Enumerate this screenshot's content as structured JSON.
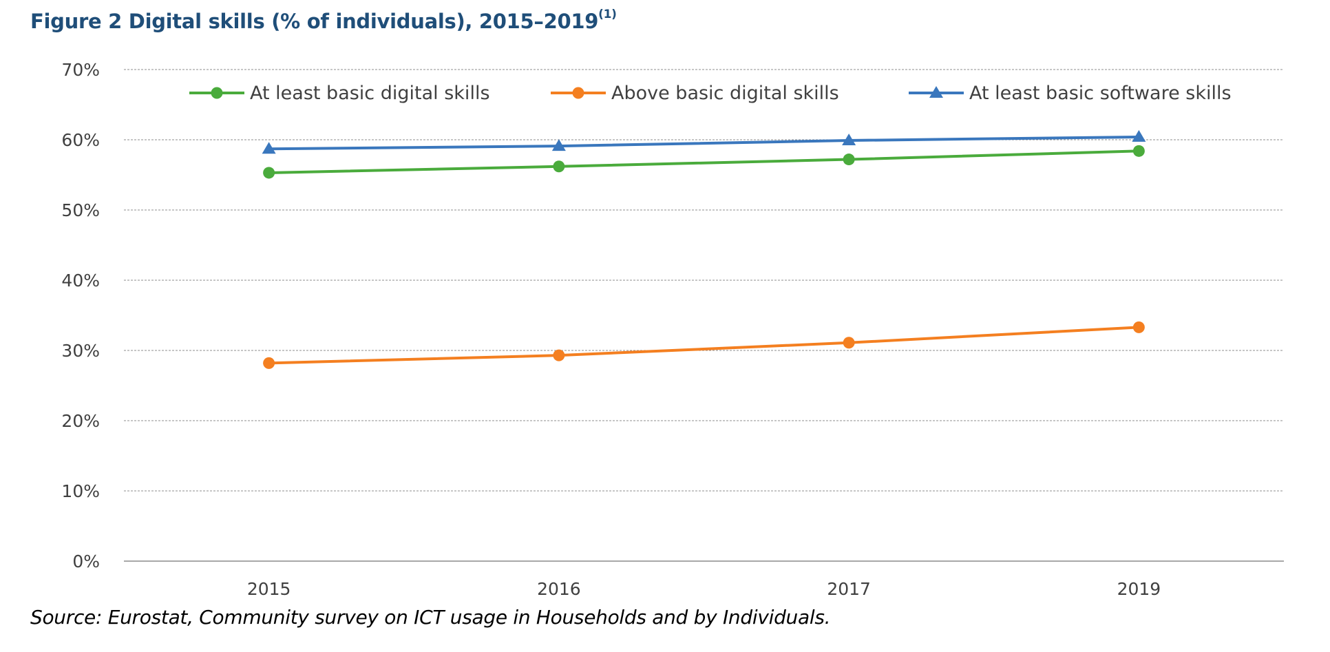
{
  "chart_data": {
    "type": "line",
    "title": "Figure 2 Digital skills (% of individuals), 2015–2019",
    "title_note": "(1)",
    "categories": [
      "2015",
      "2016",
      "2017",
      "2019"
    ],
    "series": [
      {
        "name": "At least basic digital skills",
        "values": [
          55.3,
          56.2,
          57.2,
          58.4
        ],
        "color": "#4aab3c",
        "marker": "circle"
      },
      {
        "name": "Above basic digital skills",
        "values": [
          28.2,
          29.3,
          31.1,
          33.3
        ],
        "color": "#f47f20",
        "marker": "circle"
      },
      {
        "name": "At least basic software skills",
        "values": [
          58.7,
          59.1,
          59.9,
          60.4
        ],
        "color": "#3a77bd",
        "marker": "triangle"
      }
    ],
    "ylim": [
      0,
      70
    ],
    "yticks": [
      "0%",
      "10%",
      "20%",
      "30%",
      "40%",
      "50%",
      "60%",
      "70%"
    ],
    "grid": true,
    "legend_position": "top",
    "xlabel": "",
    "ylabel": ""
  },
  "source": "Source: Eurostat, Community survey on ICT usage in Households and by Individuals."
}
